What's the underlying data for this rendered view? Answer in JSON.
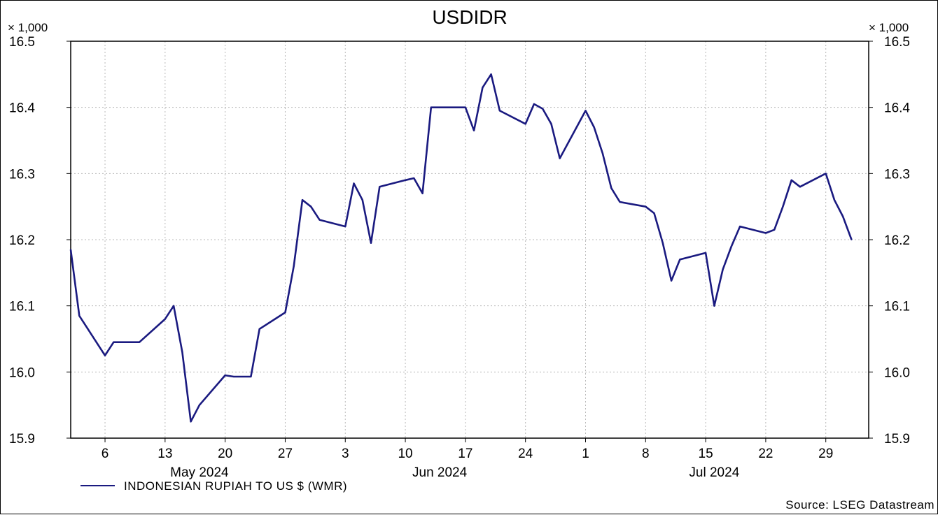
{
  "chart_data": {
    "type": "line",
    "title": "USDIDR",
    "y_multiplier_left": "× 1,000",
    "y_multiplier_right": "× 1,000",
    "ylim": [
      15.9,
      16.5
    ],
    "yticks": [
      "15.9",
      "16.0",
      "16.1",
      "16.2",
      "16.3",
      "16.4",
      "16.5"
    ],
    "xlim": [
      "2024-05-02",
      "2024-08-03"
    ],
    "xticks": [
      {
        "date": "2024-05-06",
        "label": "6"
      },
      {
        "date": "2024-05-13",
        "label": "13"
      },
      {
        "date": "2024-05-20",
        "label": "20"
      },
      {
        "date": "2024-05-27",
        "label": "27"
      },
      {
        "date": "2024-06-03",
        "label": "3"
      },
      {
        "date": "2024-06-10",
        "label": "10"
      },
      {
        "date": "2024-06-17",
        "label": "17"
      },
      {
        "date": "2024-06-24",
        "label": "24"
      },
      {
        "date": "2024-07-01",
        "label": "1"
      },
      {
        "date": "2024-07-08",
        "label": "8"
      },
      {
        "date": "2024-07-15",
        "label": "15"
      },
      {
        "date": "2024-07-22",
        "label": "22"
      },
      {
        "date": "2024-07-29",
        "label": "29"
      }
    ],
    "months": [
      {
        "date": "2024-05-17",
        "label": "May 2024"
      },
      {
        "date": "2024-06-14",
        "label": "Jun 2024"
      },
      {
        "date": "2024-07-16",
        "label": "Jul 2024"
      }
    ],
    "grid": true,
    "legend_position": "bottom-left",
    "series": [
      {
        "name": "INDONESIAN RUPIAH TO US $ (WMR)",
        "color": "#1a1a80",
        "points": [
          [
            "2024-05-02",
            16.185
          ],
          [
            "2024-05-03",
            16.085
          ],
          [
            "2024-05-06",
            16.025
          ],
          [
            "2024-05-07",
            16.045
          ],
          [
            "2024-05-08",
            16.045
          ],
          [
            "2024-05-09",
            16.045
          ],
          [
            "2024-05-10",
            16.045
          ],
          [
            "2024-05-13",
            16.08
          ],
          [
            "2024-05-14",
            16.1
          ],
          [
            "2024-05-15",
            16.03
          ],
          [
            "2024-05-16",
            15.925
          ],
          [
            "2024-05-17",
            15.95
          ],
          [
            "2024-05-20",
            15.995
          ],
          [
            "2024-05-21",
            15.993
          ],
          [
            "2024-05-22",
            15.993
          ],
          [
            "2024-05-23",
            15.993
          ],
          [
            "2024-05-24",
            16.065
          ],
          [
            "2024-05-27",
            16.09
          ],
          [
            "2024-05-28",
            16.16
          ],
          [
            "2024-05-29",
            16.26
          ],
          [
            "2024-05-30",
            16.25
          ],
          [
            "2024-05-31",
            16.23
          ],
          [
            "2024-06-03",
            16.22
          ],
          [
            "2024-06-04",
            16.285
          ],
          [
            "2024-06-05",
            16.26
          ],
          [
            "2024-06-06",
            16.195
          ],
          [
            "2024-06-07",
            16.28
          ],
          [
            "2024-06-10",
            16.29
          ],
          [
            "2024-06-11",
            16.293
          ],
          [
            "2024-06-12",
            16.27
          ],
          [
            "2024-06-13",
            16.4
          ],
          [
            "2024-06-14",
            16.4
          ],
          [
            "2024-06-17",
            16.4
          ],
          [
            "2024-06-18",
            16.365
          ],
          [
            "2024-06-19",
            16.43
          ],
          [
            "2024-06-20",
            16.45
          ],
          [
            "2024-06-21",
            16.395
          ],
          [
            "2024-06-24",
            16.375
          ],
          [
            "2024-06-25",
            16.405
          ],
          [
            "2024-06-26",
            16.398
          ],
          [
            "2024-06-27",
            16.375
          ],
          [
            "2024-06-28",
            16.323
          ],
          [
            "2024-07-01",
            16.395
          ],
          [
            "2024-07-02",
            16.37
          ],
          [
            "2024-07-03",
            16.33
          ],
          [
            "2024-07-04",
            16.278
          ],
          [
            "2024-07-05",
            16.257
          ],
          [
            "2024-07-08",
            16.25
          ],
          [
            "2024-07-09",
            16.24
          ],
          [
            "2024-07-10",
            16.195
          ],
          [
            "2024-07-11",
            16.138
          ],
          [
            "2024-07-12",
            16.17
          ],
          [
            "2024-07-15",
            16.18
          ],
          [
            "2024-07-16",
            16.1
          ],
          [
            "2024-07-17",
            16.155
          ],
          [
            "2024-07-18",
            16.19
          ],
          [
            "2024-07-19",
            16.22
          ],
          [
            "2024-07-22",
            16.21
          ],
          [
            "2024-07-23",
            16.215
          ],
          [
            "2024-07-24",
            16.25
          ],
          [
            "2024-07-25",
            16.29
          ],
          [
            "2024-07-26",
            16.28
          ],
          [
            "2024-07-29",
            16.3
          ],
          [
            "2024-07-30",
            16.26
          ],
          [
            "2024-07-31",
            16.235
          ],
          [
            "2024-08-01",
            16.2
          ]
        ]
      }
    ],
    "source": "Source: LSEG Datastream"
  }
}
